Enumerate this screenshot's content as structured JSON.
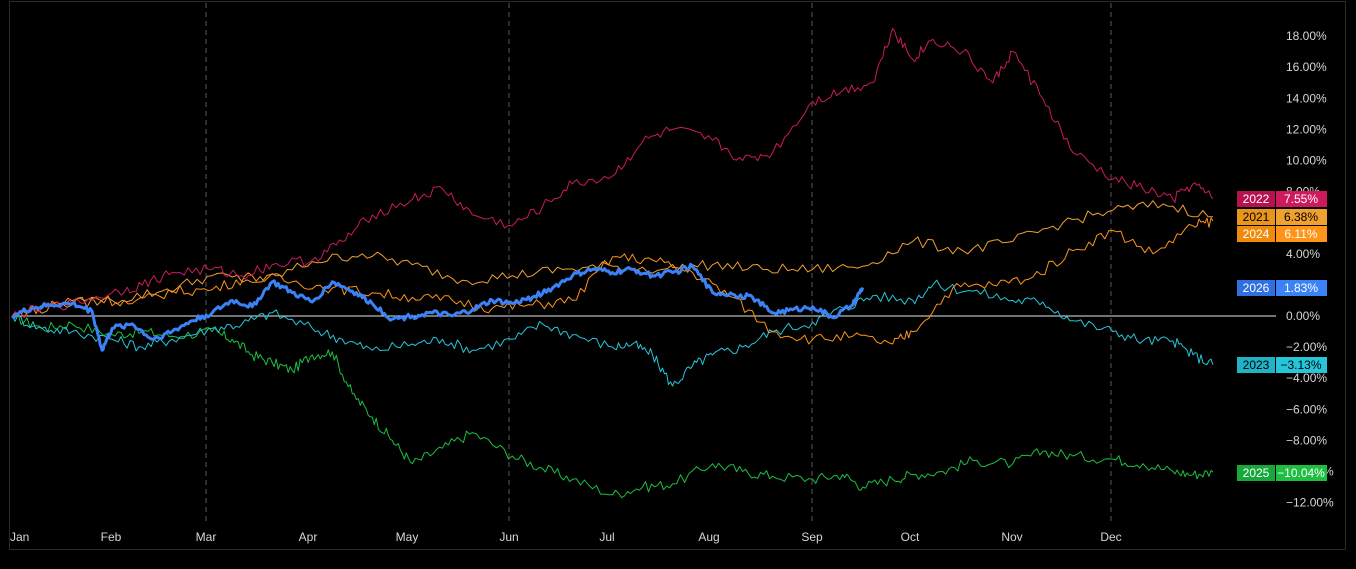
{
  "chart_data": {
    "type": "line",
    "x_tick_labels": [
      "Jan",
      "Feb",
      "Mar",
      "Apr",
      "May",
      "Jun",
      "Jul",
      "Aug",
      "Sep",
      "Oct",
      "Nov",
      "Dec"
    ],
    "y_tick_labels": [
      "18.00%",
      "16.00%",
      "14.00%",
      "12.00%",
      "10.00%",
      "8.00%",
      "4.00%",
      "0.00%",
      "−2.00%",
      "−4.00%",
      "−6.00%",
      "−8.00%",
      "−10.00%",
      "−12.00%"
    ],
    "y_tick_values": [
      18,
      16,
      14,
      12,
      10,
      8,
      4,
      0,
      -2,
      -4,
      -6,
      -8,
      -10,
      -12
    ],
    "ylim": [
      -12.5,
      19
    ],
    "x_unit": "month",
    "xlim": [
      0,
      12.2
    ],
    "vertical_gridlines_at": [
      "Mar",
      "Jun",
      "Sep",
      "Dec"
    ],
    "zero_line": true,
    "series": [
      {
        "name": "2022",
        "color": "#cc1a5c",
        "last_value": 7.55,
        "last_label": "7.55%",
        "width": 1,
        "x": [
          0,
          0.3,
          0.6,
          1,
          1.3,
          1.6,
          2,
          2.3,
          2.6,
          3,
          3.3,
          3.6,
          4,
          4.3,
          4.6,
          5,
          5.3,
          5.6,
          6,
          6.3,
          6.6,
          7,
          7.3,
          7.6,
          8,
          8.3,
          8.6,
          8.8,
          9,
          9.2,
          9.5,
          9.8,
          10,
          10.3,
          10.6,
          11,
          11.3,
          11.6,
          11.8,
          12
        ],
        "y": [
          0,
          0.5,
          0.8,
          1.5,
          2,
          2.8,
          3,
          2.6,
          3.3,
          3.6,
          4.8,
          6.5,
          7.5,
          8.2,
          6.5,
          5.8,
          7,
          8.5,
          9,
          11.2,
          12,
          11.3,
          10,
          10.5,
          13.8,
          14.5,
          15,
          18.5,
          16.5,
          17.8,
          17,
          15,
          17,
          14,
          10.5,
          8.8,
          8.2,
          7.5,
          8.5,
          7.55
        ]
      },
      {
        "name": "2021",
        "color": "#f0a030",
        "last_value": 6.38,
        "last_label": "6.38%",
        "width": 1,
        "x": [
          0,
          0.5,
          1,
          1.5,
          2,
          2.5,
          3,
          3.5,
          4,
          4.5,
          5,
          5.5,
          6,
          6.5,
          7,
          7.5,
          8,
          8.5,
          9,
          9.5,
          10,
          10.5,
          11,
          11.5,
          12
        ],
        "y": [
          0,
          0.8,
          1,
          1.6,
          2.6,
          2.2,
          3.5,
          4,
          3.3,
          2.3,
          2.6,
          3,
          3.2,
          3,
          3.3,
          3,
          3,
          3.2,
          4.8,
          4.2,
          4.8,
          6,
          6.8,
          7.2,
          6.38
        ]
      },
      {
        "name": "2024",
        "color": "#ff9418",
        "last_value": 6.11,
        "last_label": "6.11%",
        "width": 1,
        "x": [
          0,
          0.4,
          0.8,
          1.2,
          1.6,
          2,
          2.4,
          2.8,
          3.2,
          3.6,
          4,
          4.4,
          4.8,
          5.2,
          5.6,
          6,
          6.4,
          6.8,
          7.2,
          7.6,
          8,
          8.4,
          8.8,
          9,
          9.4,
          9.8,
          10.2,
          10.6,
          11,
          11.4,
          11.8,
          12
        ],
        "y": [
          0,
          0.8,
          1.2,
          0.8,
          1.6,
          1.7,
          2.6,
          2.2,
          1.8,
          1.5,
          1.2,
          1,
          0.5,
          0.7,
          1,
          3.8,
          3.6,
          2.8,
          1.2,
          -1,
          -1.5,
          -1.3,
          -1.8,
          -1,
          1.8,
          2,
          2.5,
          4.2,
          5.5,
          4,
          5.8,
          6.11
        ]
      },
      {
        "name": "2026",
        "color": "#3b82f6",
        "last_value": 1.83,
        "last_label": "1.83%",
        "width": 3,
        "x": [
          0,
          0.2,
          0.4,
          0.6,
          0.8,
          0.9,
          1,
          1.2,
          1.4,
          1.6,
          1.8,
          2,
          2.2,
          2.4,
          2.6,
          2.8,
          3,
          3.2,
          3.4,
          3.6,
          3.8,
          4,
          4.2,
          4.4,
          4.6,
          4.8,
          5,
          5.2,
          5.4,
          5.6,
          5.8,
          6,
          6.2,
          6.4,
          6.6,
          6.8,
          7,
          7.2,
          7.4,
          7.6,
          7.8,
          8,
          8.2,
          8.4,
          8.5
        ],
        "y": [
          0,
          0.5,
          0.7,
          0.8,
          0.3,
          -2.2,
          -0.8,
          -0.5,
          -1.5,
          -1,
          -0.3,
          0.2,
          1,
          0.6,
          2.2,
          1.5,
          0.9,
          2.2,
          1.6,
          0.8,
          -0.2,
          0,
          0.2,
          0,
          0.4,
          1,
          0.8,
          1.2,
          1.8,
          2.6,
          3,
          2.8,
          3,
          2.6,
          2.8,
          3.2,
          1.5,
          1.4,
          1.2,
          0.2,
          0.4,
          0.6,
          -0.1,
          0.7,
          1.83
        ]
      },
      {
        "name": "2023",
        "color": "#26c6da",
        "last_value": -3.13,
        "last_label": "−3.13%",
        "width": 1,
        "x": [
          0,
          0.3,
          0.6,
          1,
          1.3,
          1.6,
          2,
          2.3,
          2.6,
          3,
          3.3,
          3.6,
          4,
          4.3,
          4.6,
          5,
          5.3,
          5.6,
          6,
          6.2,
          6.4,
          6.6,
          6.8,
          7,
          7.3,
          7.6,
          8,
          8.3,
          8.6,
          9,
          9.2,
          9.6,
          10,
          10.3,
          10.6,
          11,
          11.3,
          11.6,
          11.8,
          12
        ],
        "y": [
          0,
          -0.8,
          -1,
          -1.5,
          -2,
          -1.5,
          -0.8,
          -0.5,
          0.2,
          -0.8,
          -1.5,
          -2.2,
          -1.8,
          -1.5,
          -2.2,
          -1.5,
          -0.5,
          -1.2,
          -2,
          -1.8,
          -2.5,
          -4.5,
          -3.2,
          -2.5,
          -2,
          -1,
          -0.4,
          0.5,
          1.3,
          1,
          2,
          1.6,
          1,
          0.9,
          -0.3,
          -1,
          -1.6,
          -1.6,
          -2.5,
          -3.13
        ]
      },
      {
        "name": "2025",
        "color": "#1dbf40",
        "last_value": -10.04,
        "last_label": "−10.04%",
        "width": 1,
        "x": [
          0,
          0.3,
          0.6,
          1,
          1.3,
          1.6,
          2,
          2.2,
          2.4,
          2.6,
          2.8,
          3,
          3.2,
          3.4,
          3.6,
          3.8,
          4,
          4.3,
          4.6,
          5,
          5.3,
          5.6,
          6,
          6.3,
          6.6,
          7,
          7.3,
          7.6,
          8,
          8.3,
          8.5,
          8.8,
          9,
          9.3,
          9.6,
          10,
          10.3,
          10.6,
          11,
          11.3,
          11.6,
          11.8,
          12
        ],
        "y": [
          0,
          -0.8,
          -0.5,
          -1.2,
          -1,
          -1.3,
          -1,
          -1.5,
          -2.5,
          -3,
          -3.5,
          -2.5,
          -2.3,
          -5,
          -6.5,
          -8,
          -9.5,
          -8.5,
          -7.5,
          -9,
          -9.8,
          -10.5,
          -11.5,
          -11,
          -10.8,
          -9.5,
          -10,
          -10.3,
          -10.5,
          -10.2,
          -11,
          -10.5,
          -10.2,
          -10,
          -9.3,
          -9.5,
          -8.7,
          -9,
          -9.2,
          -9.5,
          -10,
          -10.2,
          -10.04
        ]
      }
    ],
    "legend_placement": "right, at each series' last value"
  }
}
